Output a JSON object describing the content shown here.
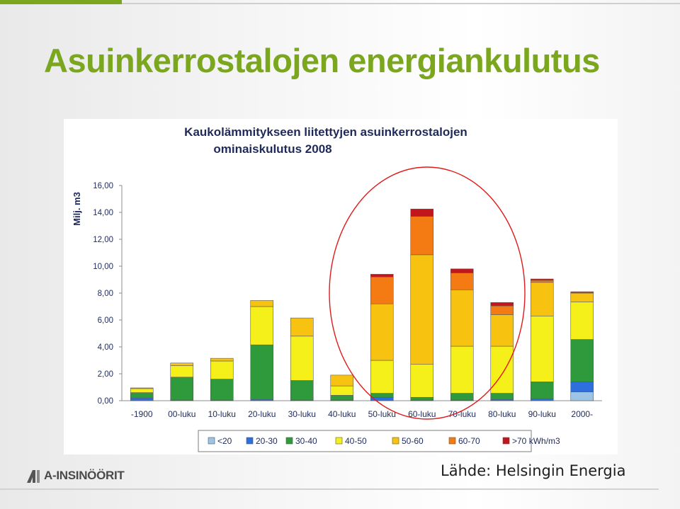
{
  "slide": {
    "title": "Asuinkerrostalojen energiankulutus",
    "source": "Lähde: Helsingin Energia",
    "logo_text": "A-INSINÖÖRIT",
    "accent_color": "#7aa71e"
  },
  "chart_data": {
    "type": "bar",
    "stacked": true,
    "title": "Kaukolämmitykseen liitettyjen asuinkerrostalojen ominaiskulutus 2008",
    "ylabel": "Milj. m3",
    "xlabel": "",
    "ylim": [
      0,
      16
    ],
    "yticks": [
      "0,00",
      "2,00",
      "4,00",
      "6,00",
      "8,00",
      "10,00",
      "12,00",
      "14,00",
      "16,00"
    ],
    "grid": false,
    "legend_position": "bottom",
    "categories": [
      "-1900",
      "00-luku",
      "10-luku",
      "20-luku",
      "30-luku",
      "40-luku",
      "50-luku",
      "60-luku",
      "70-luku",
      "80-luku",
      "90-luku",
      "2000-"
    ],
    "series": [
      {
        "name": "<20",
        "color": "#9dc3e6",
        "values": [
          0,
          0,
          0,
          0,
          0,
          0,
          0,
          0,
          0,
          0,
          0,
          0.65
        ]
      },
      {
        "name": "20-30",
        "color": "#2f6fdd",
        "values": [
          0.2,
          0.05,
          0.05,
          0.1,
          0.05,
          0.05,
          0.25,
          0.05,
          0.05,
          0.1,
          0.15,
          0.75
        ]
      },
      {
        "name": "30-40",
        "color": "#2f9a3c",
        "values": [
          0.4,
          1.7,
          1.55,
          4.05,
          1.45,
          0.35,
          0.3,
          0.2,
          0.5,
          0.45,
          1.25,
          3.15
        ]
      },
      {
        "name": "40-50",
        "color": "#f5ef1a",
        "values": [
          0.3,
          0.85,
          1.35,
          2.85,
          3.3,
          0.7,
          2.45,
          2.45,
          3.5,
          3.5,
          4.9,
          2.8
        ]
      },
      {
        "name": "50-60",
        "color": "#f7c210",
        "values": [
          0.05,
          0.2,
          0.2,
          0.45,
          1.35,
          0.8,
          4.2,
          8.15,
          4.2,
          2.35,
          2.5,
          0.65
        ]
      },
      {
        "name": "60-70",
        "color": "#f47a14",
        "values": [
          0,
          0,
          0,
          0,
          0,
          0,
          2.0,
          2.85,
          1.25,
          0.65,
          0.15,
          0.05
        ]
      },
      {
        "name": ">70 kWh/m3",
        "color": "#c0161c",
        "values": [
          0,
          0,
          0,
          0,
          0,
          0,
          0.2,
          0.55,
          0.3,
          0.25,
          0.1,
          0.05
        ]
      }
    ]
  }
}
